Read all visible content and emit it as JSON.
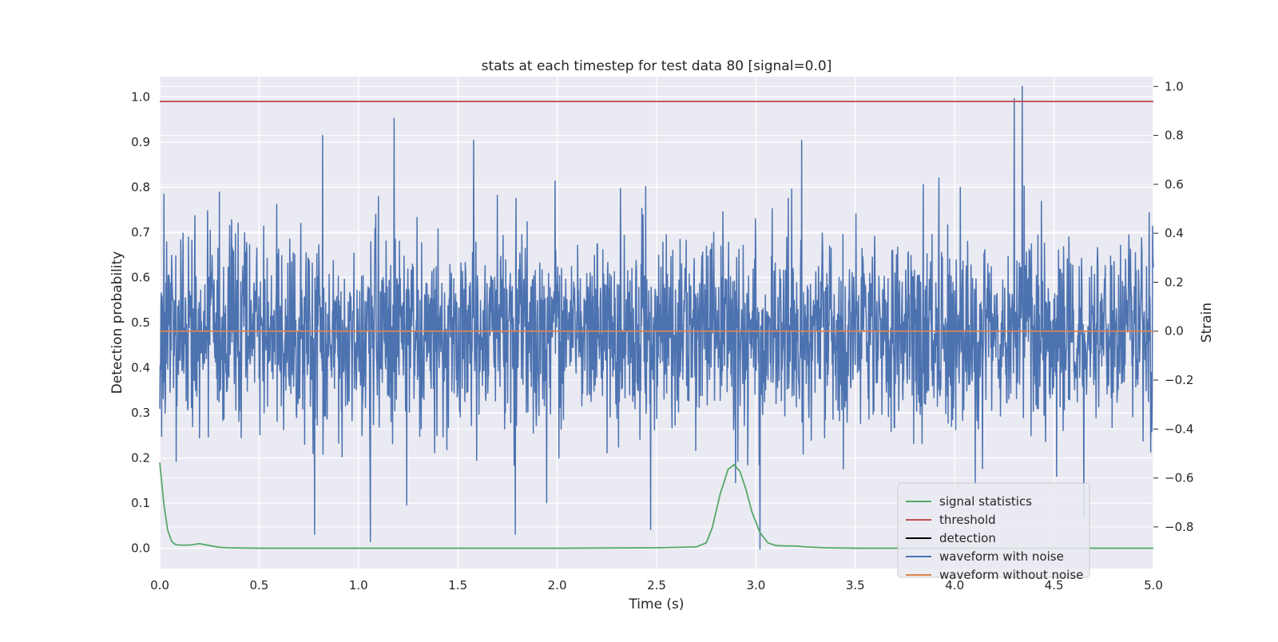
{
  "chart_data": {
    "type": "line",
    "title": "stats at each timestep for test data 80 [signal=0.0]",
    "xlabel": "Time (s)",
    "ylabel_left": "Detection probability",
    "ylabel_right": "Strain",
    "xlim": [
      0.0,
      5.0
    ],
    "ylim_left": [
      -0.045,
      1.045
    ],
    "ylim_right": [
      -0.97,
      1.04
    ],
    "x_ticks": [
      "0.0",
      "0.5",
      "1.0",
      "1.5",
      "2.0",
      "2.5",
      "3.0",
      "3.5",
      "4.0",
      "4.5",
      "5.0"
    ],
    "y_left_ticks": [
      "0.0",
      "0.1",
      "0.2",
      "0.3",
      "0.4",
      "0.5",
      "0.6",
      "0.7",
      "0.8",
      "0.9",
      "1.0"
    ],
    "y_right_ticks": [
      "1.0",
      "0.8",
      "0.6",
      "0.4",
      "0.2",
      "0.0",
      "−0.2",
      "−0.4",
      "−0.6",
      "−0.8"
    ],
    "grid": true,
    "legend_position": "lower-right",
    "series": [
      {
        "name": "signal statistics",
        "axis": "left",
        "color": "#55a868",
        "x": [
          0.0,
          0.02,
          0.04,
          0.06,
          0.08,
          0.1,
          0.15,
          0.2,
          0.25,
          0.3,
          0.35,
          0.5,
          1.0,
          1.5,
          2.0,
          2.5,
          2.7,
          2.75,
          2.78,
          2.82,
          2.86,
          2.89,
          2.92,
          2.95,
          2.98,
          3.02,
          3.06,
          3.1,
          3.15,
          3.2,
          3.25,
          3.35,
          3.5,
          4.0,
          4.5,
          5.0
        ],
        "y": [
          0.19,
          0.1,
          0.04,
          0.015,
          0.008,
          0.007,
          0.007,
          0.01,
          0.006,
          0.002,
          0.001,
          0.0,
          0.0,
          0.0,
          0.0,
          0.001,
          0.003,
          0.012,
          0.045,
          0.12,
          0.175,
          0.185,
          0.17,
          0.13,
          0.08,
          0.035,
          0.012,
          0.006,
          0.005,
          0.005,
          0.003,
          0.001,
          0.0,
          0.0,
          0.0,
          0.0
        ]
      },
      {
        "name": "threshold",
        "axis": "left",
        "color": "#c44e52",
        "x": [
          0.0,
          5.0
        ],
        "y": [
          0.99,
          0.99
        ]
      },
      {
        "name": "detection",
        "axis": "left",
        "color": "#000000",
        "x": [],
        "y": []
      },
      {
        "name": "waveform with noise",
        "axis": "right",
        "color": "#4c72b0",
        "x_range": [
          0.0,
          5.0
        ],
        "noise_sigma": 0.2,
        "peaks": [
          {
            "x": 0.82,
            "y": 0.8
          },
          {
            "x": 1.18,
            "y": 0.87
          },
          {
            "x": 1.58,
            "y": 0.78
          },
          {
            "x": 3.23,
            "y": 0.78
          },
          {
            "x": 4.3,
            "y": 0.95
          },
          {
            "x": 4.34,
            "y": 1.0
          },
          {
            "x": 0.78,
            "y": -0.83
          },
          {
            "x": 1.06,
            "y": -0.86
          },
          {
            "x": 1.79,
            "y": -0.83
          },
          {
            "x": 2.47,
            "y": -0.81
          },
          {
            "x": 3.02,
            "y": -0.89
          },
          {
            "x": 4.65,
            "y": -0.76
          }
        ]
      },
      {
        "name": "waveform without noise",
        "axis": "right",
        "color": "#dd8452",
        "x": [
          0.0,
          5.0
        ],
        "y": [
          0.0,
          0.0
        ]
      }
    ]
  }
}
